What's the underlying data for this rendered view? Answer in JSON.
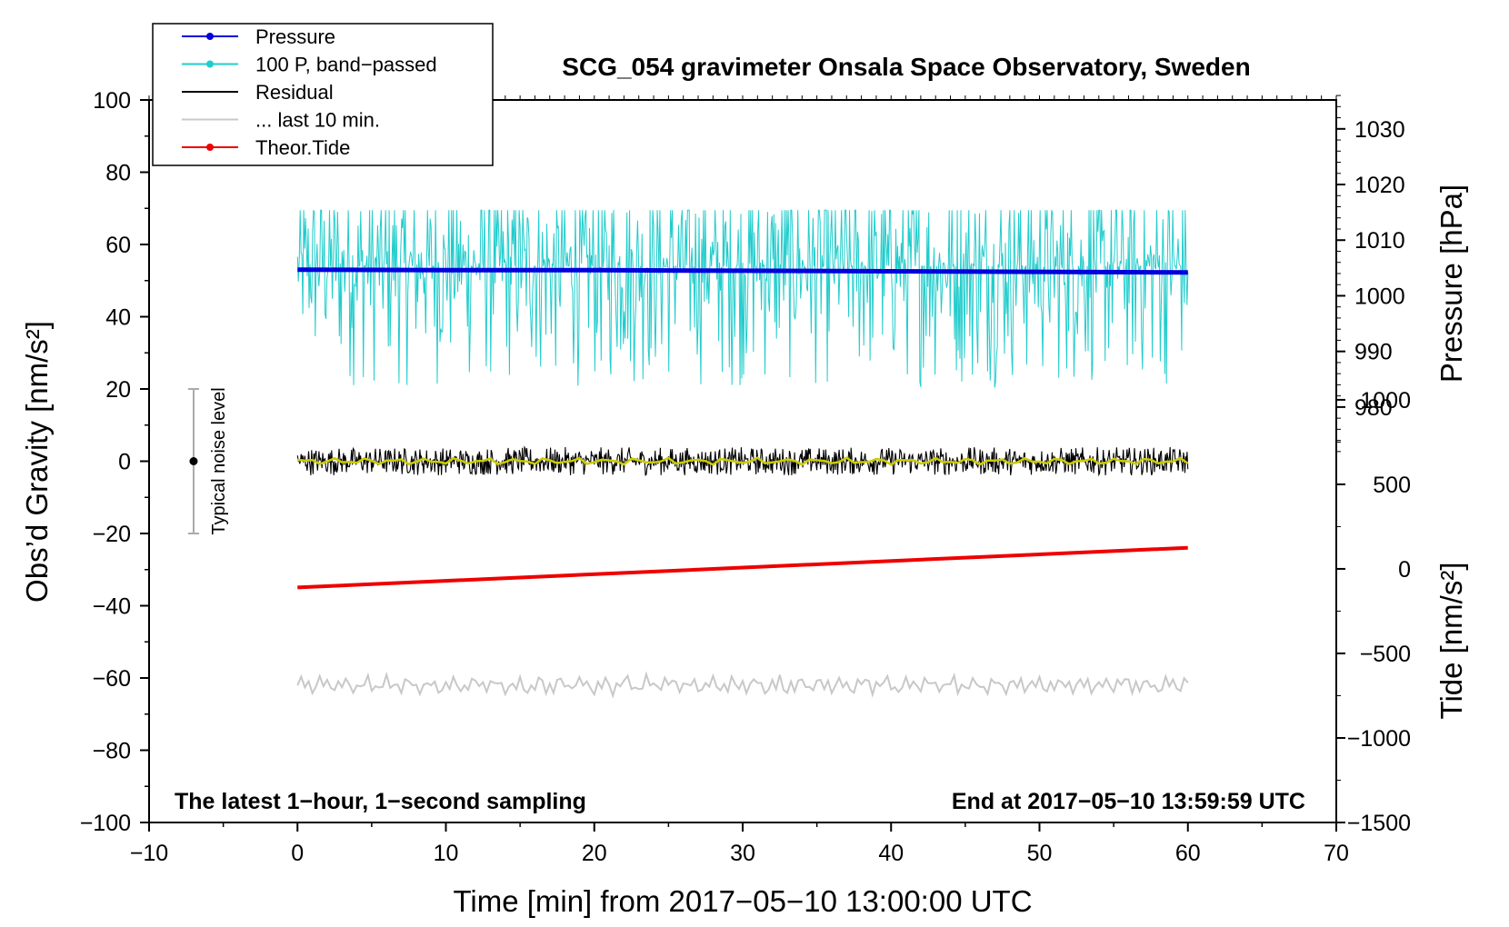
{
  "chart_data": {
    "type": "line",
    "title": "SCG_054 gravimeter Onsala Space Observatory, Sweden",
    "xlabel": "Time [min] from 2017−05−10 13:00:00 UTC",
    "ylabel_left": "Obs’d Gravity [nm/s²]",
    "ylabel_right_pressure": "Pressure [hPa]",
    "ylabel_right_tide": "Tide [nm/s²]",
    "xlim": [
      -10,
      70
    ],
    "ylim_left": [
      -100,
      100
    ],
    "pressure_axis": {
      "ticks": [
        980,
        990,
        1000,
        1010,
        1020,
        1030
      ],
      "map_to_left": [
        [
          980,
          15
        ],
        [
          1030,
          92
        ]
      ]
    },
    "tide_axis": {
      "ticks": [
        -1500,
        -1000,
        -500,
        0,
        500,
        1000
      ],
      "map_to_left": [
        [
          -1500,
          -100
        ],
        [
          1000,
          17
        ]
      ]
    },
    "x_ticks": [
      -10,
      0,
      10,
      20,
      30,
      40,
      50,
      60,
      70
    ],
    "x_tick_labels": [
      "−10",
      "0",
      "10",
      "20",
      "30",
      "40",
      "50",
      "60",
      "70"
    ],
    "y_ticks": [
      -100,
      -80,
      -60,
      -40,
      -20,
      0,
      20,
      40,
      60,
      80,
      100
    ],
    "y_tick_labels": [
      "−100",
      "−80",
      "−60",
      "−40",
      "−20",
      "0",
      "20",
      "40",
      "60",
      "80",
      "100"
    ],
    "pressure_tick_labels": [
      "980",
      "990",
      "1000",
      "1010",
      "1020",
      "1030"
    ],
    "tide_tick_labels": [
      "−1500",
      "−1000",
      "−500",
      "0",
      "500",
      "1000"
    ],
    "series": [
      {
        "name": "Pressure",
        "color": "#0000dd",
        "unit": "hPa",
        "x": [
          0,
          10,
          20,
          30,
          40,
          50,
          60
        ],
        "values": [
          1004.7,
          1004.6,
          1004.6,
          1004.5,
          1004.4,
          1004.3,
          1004.2
        ]
      },
      {
        "name": "100 P, band−passed",
        "color": "#22cccc",
        "unit": "nm/s² (offset)",
        "x_range": [
          0,
          60
        ],
        "baseline": 54,
        "min": 18.5,
        "max": 69.5
      },
      {
        "name": "Residual",
        "color": "#000000",
        "unit": "nm/s²",
        "x_range": [
          0,
          60
        ],
        "baseline": 0,
        "min": -6.5,
        "max": 5.5
      },
      {
        "name": "... last 10 min.",
        "color": "#c8c8c8",
        "unit": "nm/s² (offset)",
        "x_range": [
          0,
          60
        ],
        "baseline": -62,
        "min": -65,
        "max": -57.5
      },
      {
        "name": "Theor.Tide",
        "color": "#ee0000",
        "unit": "nm/s²",
        "x": [
          0,
          60
        ],
        "values": [
          -110,
          125
        ]
      }
    ],
    "smoothed_residual_color": "#cccc00",
    "noise_bar": {
      "label": "Typical noise level",
      "x": -7,
      "center": 0,
      "low": -20,
      "high": 20
    },
    "footer_left": "The latest 1−hour, 1−second sampling",
    "footer_right": "End at 2017−05−10 13:59:59 UTC",
    "legend_position": "top-left"
  }
}
